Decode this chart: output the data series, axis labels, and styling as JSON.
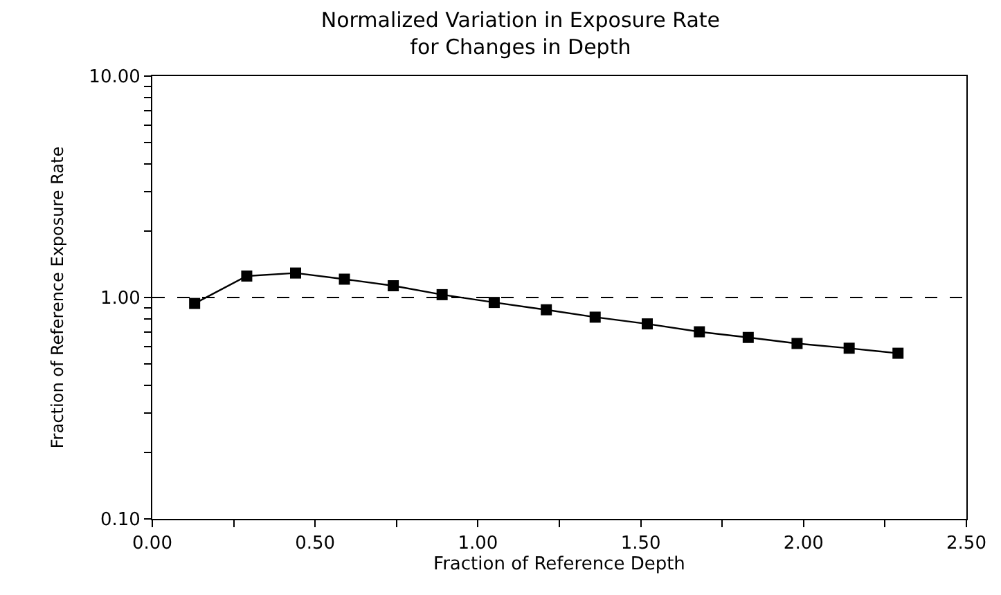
{
  "chart_data": {
    "type": "line",
    "title": "Normalized Variation in Exposure Rate\nfor Changes in Depth",
    "xlabel": "Fraction of Reference Depth",
    "ylabel": "Fraction of Reference Exposure Rate",
    "x": [
      0.13,
      0.29,
      0.44,
      0.59,
      0.74,
      0.89,
      1.05,
      1.21,
      1.36,
      1.52,
      1.68,
      1.83,
      1.98,
      2.14,
      2.29
    ],
    "series": [
      {
        "color": "#000000",
        "values": [
          0.94,
          1.25,
          1.29,
          1.21,
          1.13,
          1.03,
          0.95,
          0.88,
          0.815,
          0.76,
          0.7,
          0.66,
          0.62,
          0.59,
          0.56
        ]
      }
    ],
    "log": "y",
    "xlim": [
      0,
      2.5
    ],
    "ylim": [
      0.1,
      10
    ],
    "xticks": [
      {
        "value": 0,
        "label": "0.00"
      },
      {
        "value": 0.25,
        "label": null
      },
      {
        "value": 0.5,
        "label": "0.50"
      },
      {
        "value": 0.75,
        "label": null
      },
      {
        "value": 1,
        "label": "1.00"
      },
      {
        "value": 1.25,
        "label": null
      },
      {
        "value": 1.5,
        "label": "1.50"
      },
      {
        "value": 1.75,
        "label": null
      },
      {
        "value": 2,
        "label": "2.00"
      },
      {
        "value": 2.25,
        "label": null
      },
      {
        "value": 2.5,
        "label": "2.50"
      }
    ],
    "yticks": [
      {
        "value": 0.1,
        "label": "0.10"
      },
      {
        "value": 0.2,
        "label": null
      },
      {
        "value": 0.3,
        "label": null
      },
      {
        "value": 0.4,
        "label": null
      },
      {
        "value": 0.5,
        "label": null
      },
      {
        "value": 0.6,
        "label": null
      },
      {
        "value": 0.7,
        "label": null
      },
      {
        "value": 0.8,
        "label": null
      },
      {
        "value": 0.9,
        "label": null
      },
      {
        "value": 1,
        "label": "1.00"
      },
      {
        "value": 2,
        "label": null
      },
      {
        "value": 3,
        "label": null
      },
      {
        "value": 4,
        "label": null
      },
      {
        "value": 5,
        "label": null
      },
      {
        "value": 6,
        "label": null
      },
      {
        "value": 7,
        "label": null
      },
      {
        "value": 8,
        "label": null
      },
      {
        "value": 9,
        "label": null
      },
      {
        "value": 10,
        "label": "10.00"
      }
    ],
    "ref_lines": [
      {
        "axis": "y",
        "value": 1,
        "color": "#000000",
        "line_style": "dashed"
      }
    ],
    "marker": "square",
    "line_style": "solid",
    "grid": false,
    "legend": false
  }
}
